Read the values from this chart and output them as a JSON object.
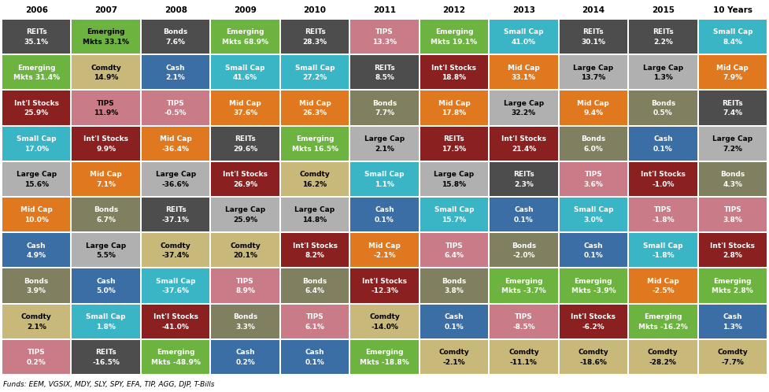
{
  "columns": [
    "2006",
    "2007",
    "2008",
    "2009",
    "2010",
    "2011",
    "2012",
    "2013",
    "2014",
    "2015",
    "10 Years"
  ],
  "footer": "Funds: EEM, VGSIX, MDY, SLY, SPY, EFA, TIP, AGG, DJP, T-Bills",
  "data": [
    [
      {
        "line1": "REITs",
        "line2": "35.1%",
        "color": "#4d4d4d",
        "tc": "white"
      },
      {
        "line1": "Emerging",
        "line2": "Mkts 33.1%",
        "color": "#6db33f",
        "tc": "black"
      },
      {
        "line1": "Bonds",
        "line2": "7.6%",
        "color": "#4d4d4d",
        "tc": "white"
      },
      {
        "line1": "Emerging",
        "line2": "Mkts 68.9%",
        "color": "#6db33f",
        "tc": "white"
      },
      {
        "line1": "REITs",
        "line2": "28.3%",
        "color": "#4d4d4d",
        "tc": "white"
      },
      {
        "line1": "TIPS",
        "line2": "13.3%",
        "color": "#c97b88",
        "tc": "white"
      },
      {
        "line1": "Emerging",
        "line2": "Mkts 19.1%",
        "color": "#6db33f",
        "tc": "white"
      },
      {
        "line1": "Small Cap",
        "line2": "41.0%",
        "color": "#3ab5c6",
        "tc": "white"
      },
      {
        "line1": "REITs",
        "line2": "30.1%",
        "color": "#4d4d4d",
        "tc": "white"
      },
      {
        "line1": "REITs",
        "line2": "2.2%",
        "color": "#4d4d4d",
        "tc": "white"
      },
      {
        "line1": "Small Cap",
        "line2": "8.4%",
        "color": "#3ab5c6",
        "tc": "white"
      }
    ],
    [
      {
        "line1": "Emerging",
        "line2": "Mkts 31.4%",
        "color": "#6db33f",
        "tc": "white"
      },
      {
        "line1": "Comdty",
        "line2": "14.9%",
        "color": "#c8b87a",
        "tc": "black"
      },
      {
        "line1": "Cash",
        "line2": "2.1%",
        "color": "#3a6ea5",
        "tc": "white"
      },
      {
        "line1": "Small Cap",
        "line2": "41.6%",
        "color": "#3ab5c6",
        "tc": "white"
      },
      {
        "line1": "Small Cap",
        "line2": "27.2%",
        "color": "#3ab5c6",
        "tc": "white"
      },
      {
        "line1": "REITs",
        "line2": "8.5%",
        "color": "#4d4d4d",
        "tc": "white"
      },
      {
        "line1": "Int'l Stocks",
        "line2": "18.8%",
        "color": "#8b2020",
        "tc": "white"
      },
      {
        "line1": "Mid Cap",
        "line2": "33.1%",
        "color": "#e07820",
        "tc": "white"
      },
      {
        "line1": "Large Cap",
        "line2": "13.7%",
        "color": "#b0b0b0",
        "tc": "black"
      },
      {
        "line1": "Large Cap",
        "line2": "1.3%",
        "color": "#b0b0b0",
        "tc": "black"
      },
      {
        "line1": "Mid Cap",
        "line2": "7.9%",
        "color": "#e07820",
        "tc": "white"
      }
    ],
    [
      {
        "line1": "Int'l Stocks",
        "line2": "25.9%",
        "color": "#8b2020",
        "tc": "white"
      },
      {
        "line1": "TIPS",
        "line2": "11.9%",
        "color": "#c97b88",
        "tc": "black"
      },
      {
        "line1": "TIPS",
        "line2": "-0.5%",
        "color": "#c97b88",
        "tc": "white"
      },
      {
        "line1": "Mid Cap",
        "line2": "37.6%",
        "color": "#e07820",
        "tc": "white"
      },
      {
        "line1": "Mid Cap",
        "line2": "26.3%",
        "color": "#e07820",
        "tc": "white"
      },
      {
        "line1": "Bonds",
        "line2": "7.7%",
        "color": "#808060",
        "tc": "white"
      },
      {
        "line1": "Mid Cap",
        "line2": "17.8%",
        "color": "#e07820",
        "tc": "white"
      },
      {
        "line1": "Large Cap",
        "line2": "32.2%",
        "color": "#b0b0b0",
        "tc": "black"
      },
      {
        "line1": "Mid Cap",
        "line2": "9.4%",
        "color": "#e07820",
        "tc": "white"
      },
      {
        "line1": "Bonds",
        "line2": "0.5%",
        "color": "#808060",
        "tc": "white"
      },
      {
        "line1": "REITs",
        "line2": "7.4%",
        "color": "#4d4d4d",
        "tc": "white"
      }
    ],
    [
      {
        "line1": "Small Cap",
        "line2": "17.0%",
        "color": "#3ab5c6",
        "tc": "white"
      },
      {
        "line1": "Int'l Stocks",
        "line2": "9.9%",
        "color": "#8b2020",
        "tc": "white"
      },
      {
        "line1": "Mid Cap",
        "line2": "-36.4%",
        "color": "#e07820",
        "tc": "white"
      },
      {
        "line1": "REITs",
        "line2": "29.6%",
        "color": "#4d4d4d",
        "tc": "white"
      },
      {
        "line1": "Emerging",
        "line2": "Mkts 16.5%",
        "color": "#6db33f",
        "tc": "white"
      },
      {
        "line1": "Large Cap",
        "line2": "2.1%",
        "color": "#b0b0b0",
        "tc": "black"
      },
      {
        "line1": "REITs",
        "line2": "17.5%",
        "color": "#8b2020",
        "tc": "white"
      },
      {
        "line1": "Int'l Stocks",
        "line2": "21.4%",
        "color": "#8b2020",
        "tc": "white"
      },
      {
        "line1": "Bonds",
        "line2": "6.0%",
        "color": "#808060",
        "tc": "white"
      },
      {
        "line1": "Cash",
        "line2": "0.1%",
        "color": "#3a6ea5",
        "tc": "white"
      },
      {
        "line1": "Large Cap",
        "line2": "7.2%",
        "color": "#b0b0b0",
        "tc": "black"
      }
    ],
    [
      {
        "line1": "Large Cap",
        "line2": "15.6%",
        "color": "#b0b0b0",
        "tc": "black"
      },
      {
        "line1": "Mid Cap",
        "line2": "7.1%",
        "color": "#e07820",
        "tc": "white"
      },
      {
        "line1": "Large Cap",
        "line2": "-36.6%",
        "color": "#b0b0b0",
        "tc": "black"
      },
      {
        "line1": "Int'l Stocks",
        "line2": "26.9%",
        "color": "#8b2020",
        "tc": "white"
      },
      {
        "line1": "Comdty",
        "line2": "16.2%",
        "color": "#c8b87a",
        "tc": "black"
      },
      {
        "line1": "Small Cap",
        "line2": "1.1%",
        "color": "#3ab5c6",
        "tc": "white"
      },
      {
        "line1": "Large Cap",
        "line2": "15.8%",
        "color": "#b0b0b0",
        "tc": "black"
      },
      {
        "line1": "REITs",
        "line2": "2.3%",
        "color": "#4d4d4d",
        "tc": "white"
      },
      {
        "line1": "TIPS",
        "line2": "3.6%",
        "color": "#c97b88",
        "tc": "white"
      },
      {
        "line1": "Int'l Stocks",
        "line2": "-1.0%",
        "color": "#8b2020",
        "tc": "white"
      },
      {
        "line1": "Bonds",
        "line2": "4.3%",
        "color": "#808060",
        "tc": "white"
      }
    ],
    [
      {
        "line1": "Mid Cap",
        "line2": "10.0%",
        "color": "#e07820",
        "tc": "white"
      },
      {
        "line1": "Bonds",
        "line2": "6.7%",
        "color": "#808060",
        "tc": "white"
      },
      {
        "line1": "REITs",
        "line2": "-37.1%",
        "color": "#4d4d4d",
        "tc": "white"
      },
      {
        "line1": "Large Cap",
        "line2": "25.9%",
        "color": "#b0b0b0",
        "tc": "black"
      },
      {
        "line1": "Large Cap",
        "line2": "14.8%",
        "color": "#b0b0b0",
        "tc": "black"
      },
      {
        "line1": "Cash",
        "line2": "0.1%",
        "color": "#3a6ea5",
        "tc": "white"
      },
      {
        "line1": "Small Cap",
        "line2": "15.7%",
        "color": "#3ab5c6",
        "tc": "white"
      },
      {
        "line1": "Cash",
        "line2": "0.1%",
        "color": "#3a6ea5",
        "tc": "white"
      },
      {
        "line1": "Small Cap",
        "line2": "3.0%",
        "color": "#3ab5c6",
        "tc": "white"
      },
      {
        "line1": "TIPS",
        "line2": "-1.8%",
        "color": "#c97b88",
        "tc": "white"
      },
      {
        "line1": "TIPS",
        "line2": "3.8%",
        "color": "#c97b88",
        "tc": "white"
      }
    ],
    [
      {
        "line1": "Cash",
        "line2": "4.9%",
        "color": "#3a6ea5",
        "tc": "white"
      },
      {
        "line1": "Large Cap",
        "line2": "5.5%",
        "color": "#b0b0b0",
        "tc": "black"
      },
      {
        "line1": "Comdty",
        "line2": "-37.4%",
        "color": "#c8b87a",
        "tc": "black"
      },
      {
        "line1": "Comdty",
        "line2": "20.1%",
        "color": "#c8b87a",
        "tc": "black"
      },
      {
        "line1": "Int'l Stocks",
        "line2": "8.2%",
        "color": "#8b2020",
        "tc": "white"
      },
      {
        "line1": "Mid Cap",
        "line2": "-2.1%",
        "color": "#e07820",
        "tc": "white"
      },
      {
        "line1": "TIPS",
        "line2": "6.4%",
        "color": "#c97b88",
        "tc": "white"
      },
      {
        "line1": "Bonds",
        "line2": "-2.0%",
        "color": "#808060",
        "tc": "white"
      },
      {
        "line1": "Cash",
        "line2": "0.1%",
        "color": "#3a6ea5",
        "tc": "white"
      },
      {
        "line1": "Small Cap",
        "line2": "-1.8%",
        "color": "#3ab5c6",
        "tc": "white"
      },
      {
        "line1": "Int'l Stocks",
        "line2": "2.8%",
        "color": "#8b2020",
        "tc": "white"
      }
    ],
    [
      {
        "line1": "Bonds",
        "line2": "3.9%",
        "color": "#808060",
        "tc": "white"
      },
      {
        "line1": "Cash",
        "line2": "5.0%",
        "color": "#3a6ea5",
        "tc": "white"
      },
      {
        "line1": "Small Cap",
        "line2": "-37.6%",
        "color": "#3ab5c6",
        "tc": "white"
      },
      {
        "line1": "TIPS",
        "line2": "8.9%",
        "color": "#c97b88",
        "tc": "white"
      },
      {
        "line1": "Bonds",
        "line2": "6.4%",
        "color": "#808060",
        "tc": "white"
      },
      {
        "line1": "Int'l Stocks",
        "line2": "-12.3%",
        "color": "#8b2020",
        "tc": "white"
      },
      {
        "line1": "Bonds",
        "line2": "3.8%",
        "color": "#808060",
        "tc": "white"
      },
      {
        "line1": "Emerging",
        "line2": "Mkts -3.7%",
        "color": "#6db33f",
        "tc": "white"
      },
      {
        "line1": "Emerging",
        "line2": "Mkts -3.9%",
        "color": "#6db33f",
        "tc": "white"
      },
      {
        "line1": "Mid Cap",
        "line2": "-2.5%",
        "color": "#e07820",
        "tc": "white"
      },
      {
        "line1": "Emerging",
        "line2": "Mkts 2.8%",
        "color": "#6db33f",
        "tc": "white"
      }
    ],
    [
      {
        "line1": "Comdty",
        "line2": "2.1%",
        "color": "#c8b87a",
        "tc": "black"
      },
      {
        "line1": "Small Cap",
        "line2": "1.8%",
        "color": "#3ab5c6",
        "tc": "white"
      },
      {
        "line1": "Int'l Stocks",
        "line2": "-41.0%",
        "color": "#8b2020",
        "tc": "white"
      },
      {
        "line1": "Bonds",
        "line2": "3.3%",
        "color": "#808060",
        "tc": "white"
      },
      {
        "line1": "TIPS",
        "line2": "6.1%",
        "color": "#c97b88",
        "tc": "white"
      },
      {
        "line1": "Comdty",
        "line2": "-14.0%",
        "color": "#c8b87a",
        "tc": "black"
      },
      {
        "line1": "Cash",
        "line2": "0.1%",
        "color": "#3a6ea5",
        "tc": "white"
      },
      {
        "line1": "TIPS",
        "line2": "-8.5%",
        "color": "#c97b88",
        "tc": "white"
      },
      {
        "line1": "Int'l Stocks",
        "line2": "-6.2%",
        "color": "#8b2020",
        "tc": "white"
      },
      {
        "line1": "Emerging",
        "line2": "Mkts -16.2%",
        "color": "#6db33f",
        "tc": "white"
      },
      {
        "line1": "Cash",
        "line2": "1.3%",
        "color": "#3a6ea5",
        "tc": "white"
      }
    ],
    [
      {
        "line1": "TIPS",
        "line2": "0.2%",
        "color": "#c97b88",
        "tc": "white"
      },
      {
        "line1": "REITs",
        "line2": "-16.5%",
        "color": "#4d4d4d",
        "tc": "white"
      },
      {
        "line1": "Emerging",
        "line2": "Mkts -48.9%",
        "color": "#6db33f",
        "tc": "white"
      },
      {
        "line1": "Cash",
        "line2": "0.2%",
        "color": "#3a6ea5",
        "tc": "white"
      },
      {
        "line1": "Cash",
        "line2": "0.1%",
        "color": "#3a6ea5",
        "tc": "white"
      },
      {
        "line1": "Emerging",
        "line2": "Mkts -18.8%",
        "color": "#6db33f",
        "tc": "white"
      },
      {
        "line1": "Comdty",
        "line2": "-2.1%",
        "color": "#c8b87a",
        "tc": "black"
      },
      {
        "line1": "Comdty",
        "line2": "-11.1%",
        "color": "#c8b87a",
        "tc": "black"
      },
      {
        "line1": "Comdty",
        "line2": "-18.6%",
        "color": "#c8b87a",
        "tc": "black"
      },
      {
        "line1": "Comdty",
        "line2": "-28.2%",
        "color": "#c8b87a",
        "tc": "black"
      },
      {
        "line1": "Comdty",
        "line2": "-7.7%",
        "color": "#c8b87a",
        "tc": "black"
      }
    ]
  ],
  "bg_color": "#ffffff"
}
